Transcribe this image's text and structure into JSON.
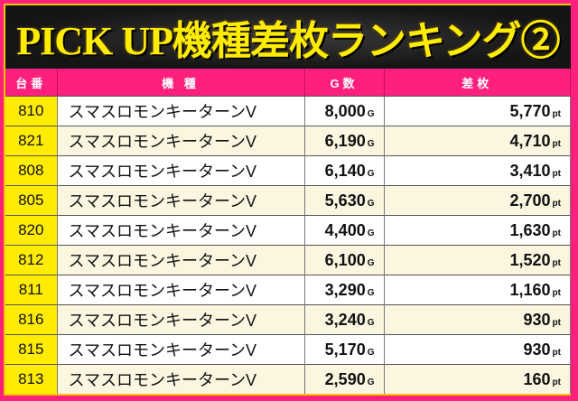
{
  "title": "PICK UP機種差枚ランキング②",
  "headers": {
    "no": "台番",
    "name": "機 種",
    "games": "G数",
    "diff": "差枚"
  },
  "units": {
    "games": "G",
    "diff": "pt"
  },
  "rows": [
    {
      "no": "810",
      "name": "スマスロモンキーターンV",
      "games": "8,000",
      "diff": "5,770"
    },
    {
      "no": "821",
      "name": "スマスロモンキーターンV",
      "games": "6,190",
      "diff": "4,710"
    },
    {
      "no": "808",
      "name": "スマスロモンキーターンV",
      "games": "6,140",
      "diff": "3,410"
    },
    {
      "no": "805",
      "name": "スマスロモンキーターンV",
      "games": "5,630",
      "diff": "2,700"
    },
    {
      "no": "820",
      "name": "スマスロモンキーターンV",
      "games": "4,400",
      "diff": "1,630"
    },
    {
      "no": "812",
      "name": "スマスロモンキーターンV",
      "games": "6,100",
      "diff": "1,520"
    },
    {
      "no": "811",
      "name": "スマスロモンキーターンV",
      "games": "3,290",
      "diff": "1,160"
    },
    {
      "no": "816",
      "name": "スマスロモンキーターンV",
      "games": "3,240",
      "diff": "930"
    },
    {
      "no": "815",
      "name": "スマスロモンキーターンV",
      "games": "5,170",
      "diff": "930"
    },
    {
      "no": "813",
      "name": "スマスロモンキーターンV",
      "games": "2,590",
      "diff": "160"
    }
  ],
  "colors": {
    "accent": "#ff1f7d",
    "title": "#ffec00",
    "number_cell": "#ffec00"
  }
}
